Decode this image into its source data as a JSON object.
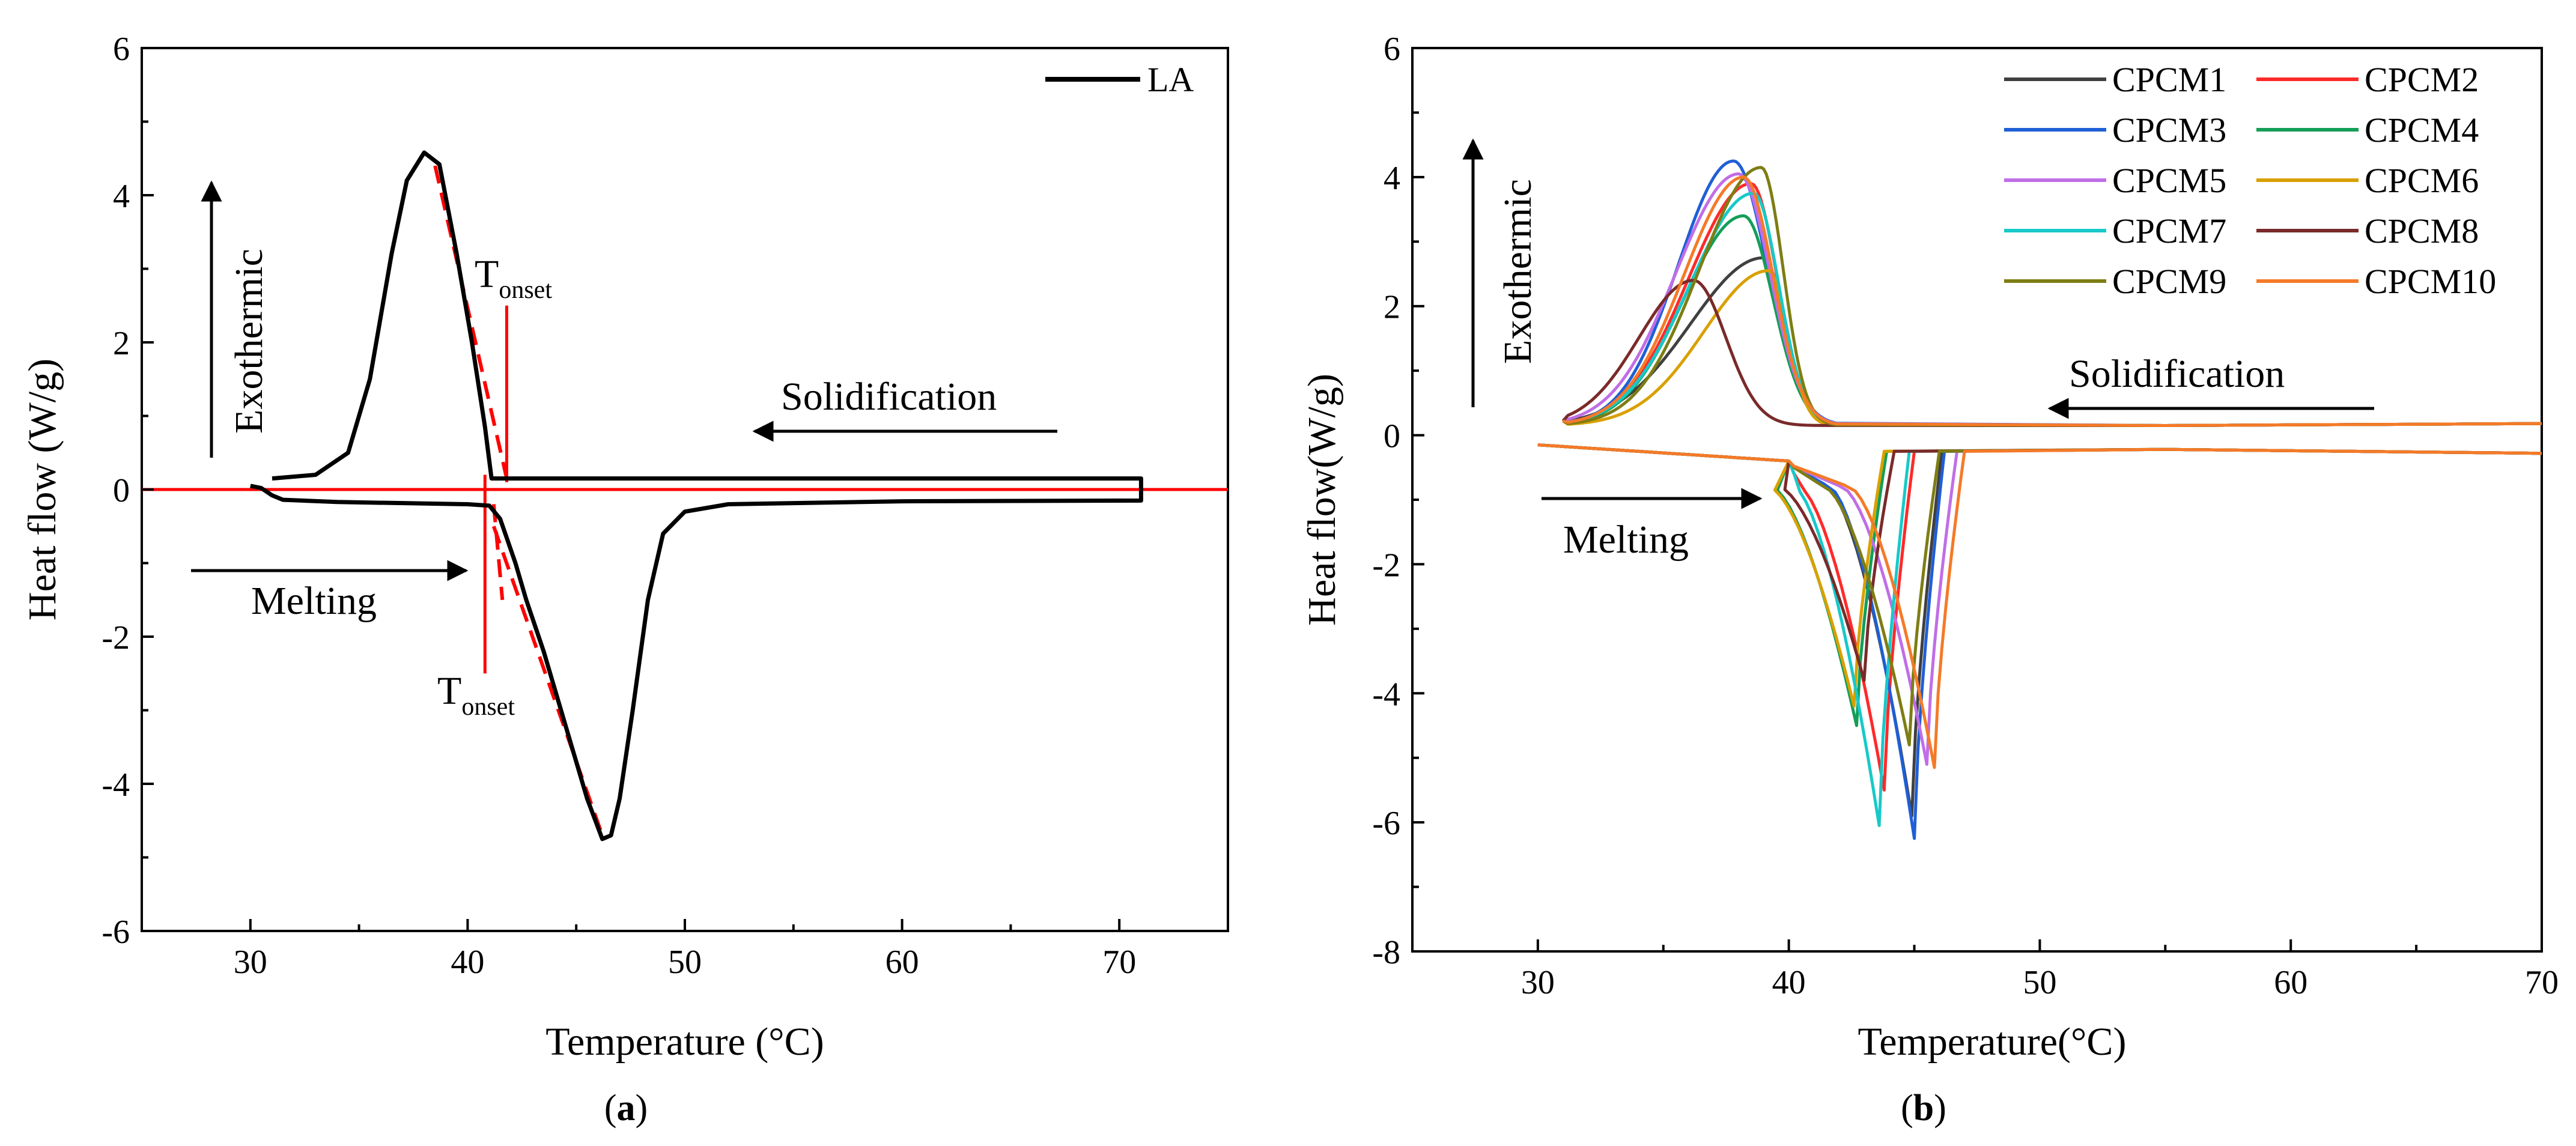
{
  "chart_data": [
    {
      "panel": "a",
      "type": "line",
      "xlabel": "Temperature (°C)",
      "ylabel": "Heat flow (W/g)",
      "xlim": [
        25,
        75
      ],
      "ylim": [
        -6,
        6
      ],
      "xticks": [
        30,
        40,
        50,
        60,
        70
      ],
      "yticks": [
        6,
        4,
        2,
        0,
        -2,
        -4,
        -6
      ],
      "caption_open": "(",
      "caption_letter": "a",
      "caption_close": ")",
      "legend_position": "top-right",
      "series": [
        {
          "name": "LA",
          "color": "#000000",
          "points": [
            [
              31.0,
              0.15
            ],
            [
              33.0,
              0.2
            ],
            [
              34.5,
              0.5
            ],
            [
              35.5,
              1.5
            ],
            [
              36.5,
              3.2
            ],
            [
              37.2,
              4.2
            ],
            [
              38.0,
              4.58
            ],
            [
              38.7,
              4.42
            ],
            [
              39.5,
              3.2
            ],
            [
              40.2,
              2.0
            ],
            [
              40.8,
              0.85
            ],
            [
              41.1,
              0.15
            ],
            [
              50.0,
              0.15
            ],
            [
              60.0,
              0.15
            ],
            [
              71.0,
              0.15
            ],
            [
              71.0,
              -0.15
            ],
            [
              60.0,
              -0.16
            ],
            [
              52.0,
              -0.2
            ],
            [
              50.0,
              -0.3
            ],
            [
              49.0,
              -0.6
            ],
            [
              48.3,
              -1.5
            ],
            [
              47.6,
              -3.0
            ],
            [
              47.0,
              -4.2
            ],
            [
              46.6,
              -4.7
            ],
            [
              46.2,
              -4.75
            ],
            [
              45.5,
              -4.2
            ],
            [
              44.5,
              -3.2
            ],
            [
              43.5,
              -2.2
            ],
            [
              42.7,
              -1.5
            ],
            [
              42.2,
              -1.0
            ],
            [
              41.5,
              -0.4
            ],
            [
              41.0,
              -0.22
            ],
            [
              40.0,
              -0.2
            ],
            [
              34.0,
              -0.17
            ],
            [
              31.5,
              -0.14
            ],
            [
              31.0,
              -0.08
            ],
            [
              30.5,
              0.02
            ],
            [
              30.0,
              0.05
            ]
          ]
        }
      ],
      "reference_lines": [
        {
          "name": "baseline",
          "color": "#ff0000",
          "points": [
            [
              25,
              0
            ],
            [
              75,
              0
            ]
          ]
        },
        {
          "name": "onset-line-heating",
          "color": "#ff0000",
          "points": [
            [
              40.8,
              0.2
            ],
            [
              40.8,
              -2.5
            ]
          ]
        },
        {
          "name": "onset-line-cooling",
          "color": "#ff0000",
          "points": [
            [
              41.8,
              2.5
            ],
            [
              41.8,
              0.1
            ]
          ]
        },
        {
          "name": "tangent-cooling",
          "color": "#ff0000",
          "dashed": true,
          "points": [
            [
              38.5,
              4.4
            ],
            [
              41.8,
              0.15
            ]
          ]
        },
        {
          "name": "tangent-heating",
          "color": "#ff0000",
          "dashed": true,
          "points": [
            [
              41.2,
              -0.5
            ],
            [
              46.2,
              -4.7
            ]
          ]
        },
        {
          "name": "tangent-heating-short",
          "color": "#ff0000",
          "dashed": true,
          "points": [
            [
              41.2,
              -0.2
            ],
            [
              41.6,
              -1.5
            ]
          ]
        }
      ],
      "annotations": {
        "tonset_cooling": {
          "main": "T",
          "sub": "onset"
        },
        "tonset_heating": {
          "main": "T",
          "sub": "onset"
        },
        "solidification": "Solidification",
        "melting": "Melting",
        "exothermic": "Exothermic"
      }
    },
    {
      "panel": "b",
      "type": "line",
      "xlabel": "Temperature(°C)",
      "ylabel": "Heat flow(W/g)",
      "xlim": [
        25,
        70
      ],
      "ylim": [
        -8,
        6
      ],
      "xticks": [
        30,
        40,
        50,
        60,
        70
      ],
      "yticks": [
        6,
        4,
        2,
        0,
        -2,
        -4,
        -6,
        -8
      ],
      "caption_open": "(",
      "caption_letter": "b",
      "caption_close": ")",
      "legend_position": "top-right",
      "series": [
        {
          "name": "CPCM1",
          "color": "#404040",
          "peak_t": 39.0,
          "peak_h": 2.75,
          "exo_start": 32.0,
          "cool_end": 41.0,
          "melt_t": 44.9,
          "melt_h": -5.9
        },
        {
          "name": "CPCM2",
          "color": "#ff2a2a",
          "peak_t": 38.5,
          "peak_h": 3.9,
          "exo_start": 32.5,
          "cool_end": 41.0,
          "melt_t": 43.8,
          "melt_h": -5.5
        },
        {
          "name": "CPCM3",
          "color": "#1f5fd6",
          "peak_t": 37.8,
          "peak_h": 4.25,
          "exo_start": 32.5,
          "cool_end": 41.0,
          "melt_t": 45.0,
          "melt_h": -6.25
        },
        {
          "name": "CPCM4",
          "color": "#139e57",
          "peak_t": 38.2,
          "peak_h": 3.4,
          "exo_start": 32.5,
          "cool_end": 41.0,
          "melt_t": 42.7,
          "melt_h": -4.5
        },
        {
          "name": "CPCM5",
          "color": "#c06ee6",
          "peak_t": 38.0,
          "peak_h": 4.05,
          "exo_start": 32.0,
          "cool_end": 41.0,
          "melt_t": 45.5,
          "melt_h": -5.1
        },
        {
          "name": "CPCM6",
          "color": "#d9a000",
          "peak_t": 39.2,
          "peak_h": 2.55,
          "exo_start": 33.0,
          "cool_end": 41.0,
          "melt_t": 42.6,
          "melt_h": -4.2
        },
        {
          "name": "CPCM7",
          "color": "#17c9c9",
          "peak_t": 38.6,
          "peak_h": 3.75,
          "exo_start": 32.5,
          "cool_end": 41.0,
          "melt_t": 43.6,
          "melt_h": -6.05
        },
        {
          "name": "CPCM8",
          "color": "#7a2a2a",
          "peak_t": 36.2,
          "peak_h": 2.4,
          "exo_start": 31.0,
          "cool_end": 39.3,
          "melt_t": 43.0,
          "melt_h": -3.8
        },
        {
          "name": "CPCM9",
          "color": "#7d7d14",
          "peak_t": 38.9,
          "peak_h": 4.15,
          "exo_start": 33.0,
          "cool_end": 41.0,
          "melt_t": 44.8,
          "melt_h": -4.8
        },
        {
          "name": "CPCM10",
          "color": "#f57a28",
          "peak_t": 38.2,
          "peak_h": 4.0,
          "exo_start": 32.5,
          "cool_end": 41.0,
          "melt_t": 45.8,
          "melt_h": -5.15
        }
      ],
      "annotations": {
        "solidification": "Solidification",
        "melting": "Melting",
        "exothermic": "Exothermic"
      }
    }
  ]
}
